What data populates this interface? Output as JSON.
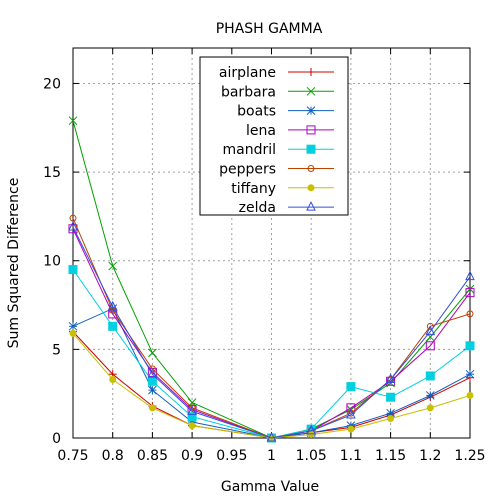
{
  "chart_data": {
    "type": "line",
    "title": "PHASH GAMMA",
    "xlabel": "Gamma Value",
    "ylabel": "Sum Squared Difference",
    "xlim": [
      0.75,
      1.25
    ],
    "ylim": [
      0,
      22
    ],
    "xticks": [
      0.75,
      0.8,
      0.85,
      0.9,
      0.95,
      1,
      1.05,
      1.1,
      1.15,
      1.2,
      1.25
    ],
    "xtick_labels": [
      "0.75",
      "0.8",
      "0.85",
      "0.9",
      "0.95",
      "1",
      "1.05",
      "1.1",
      "1.15",
      "1.2",
      "1.25"
    ],
    "yticks": [
      0,
      5,
      10,
      15,
      20
    ],
    "ytick_labels": [
      "0",
      "5",
      "10",
      "15",
      "20"
    ],
    "grid": true,
    "legend_position": "top-center",
    "x": [
      0.75,
      0.8,
      0.85,
      0.9,
      1,
      1.05,
      1.1,
      1.15,
      1.2,
      1.25
    ],
    "series": [
      {
        "name": "airplane",
        "color": "#d00000",
        "marker": "plus",
        "values": [
          6.0,
          3.6,
          1.8,
          0.7,
          0.0,
          0.3,
          0.6,
          1.3,
          2.3,
          3.4
        ]
      },
      {
        "name": "barbara",
        "color": "#00a000",
        "marker": "cross",
        "values": [
          17.9,
          9.7,
          4.8,
          2.0,
          0.0,
          0.5,
          1.6,
          3.1,
          5.7,
          8.4
        ]
      },
      {
        "name": "boats",
        "color": "#1060c0",
        "marker": "star",
        "values": [
          6.3,
          7.3,
          2.7,
          0.9,
          0.0,
          0.3,
          0.7,
          1.4,
          2.4,
          3.6
        ]
      },
      {
        "name": "lena",
        "color": "#b000c0",
        "marker": "square",
        "values": [
          11.8,
          7.0,
          3.7,
          1.6,
          0.0,
          0.4,
          1.7,
          3.2,
          5.2,
          8.2
        ]
      },
      {
        "name": "mandril",
        "color": "#00d0e0",
        "marker": "filled-square",
        "values": [
          9.5,
          6.3,
          3.2,
          1.2,
          0.0,
          0.5,
          2.9,
          2.3,
          3.5,
          5.2
        ]
      },
      {
        "name": "peppers",
        "color": "#c04000",
        "marker": "circle",
        "values": [
          12.4,
          7.2,
          3.9,
          1.7,
          0.0,
          0.4,
          1.4,
          3.3,
          6.3,
          7.0
        ]
      },
      {
        "name": "tiffany",
        "color": "#c8c000",
        "marker": "filled-circle",
        "values": [
          5.9,
          3.3,
          1.7,
          0.7,
          0.0,
          0.2,
          0.5,
          1.1,
          1.7,
          2.4
        ]
      },
      {
        "name": "zelda",
        "color": "#3050e0",
        "marker": "triangle",
        "values": [
          11.9,
          7.4,
          3.6,
          1.5,
          0.0,
          0.4,
          1.3,
          3.3,
          6.0,
          9.1
        ]
      }
    ]
  }
}
